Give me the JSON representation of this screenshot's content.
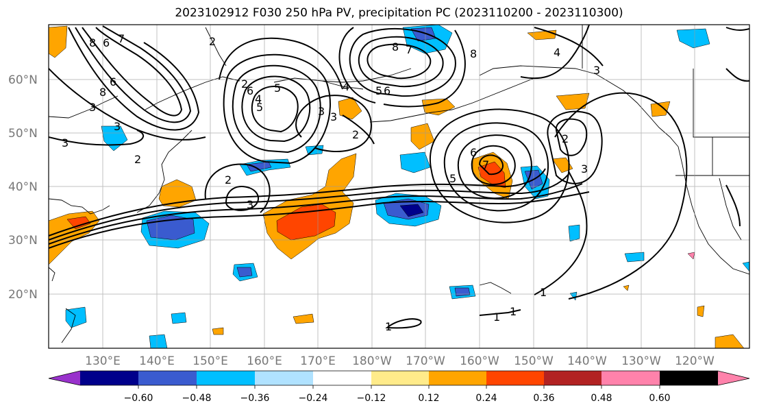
{
  "title": "2023102912 F030 250 hPa PV, precipitation PC (2023110200 - 2023110300)",
  "lat_labels": [
    "60°N",
    "50°N",
    "40°N",
    "30°N",
    "20°N"
  ],
  "lon_labels": [
    "130°E",
    "140°E",
    "150°E",
    "160°E",
    "170°E",
    "180°W",
    "170°W",
    "160°W",
    "150°W",
    "140°W",
    "130°W",
    "120°W"
  ],
  "colorbar": {
    "ticks": [
      "−0.60",
      "−0.48",
      "−0.36",
      "−0.24",
      "−0.12",
      "0.12",
      "0.24",
      "0.36",
      "0.48",
      "0.60"
    ],
    "colors": [
      "#9932cc",
      "#00008b",
      "#3a5bcf",
      "#00bfff",
      "#b0e2ff",
      "#ffffff",
      "#ffeb8a",
      "#ffa500",
      "#ff4500",
      "#b22222",
      "#ff82ab"
    ]
  },
  "contour_labels": [
    "8",
    "6",
    "7",
    "2",
    "8",
    "6",
    "5",
    "4",
    "3",
    "2",
    "3",
    "3",
    "2",
    "6",
    "5",
    "8",
    "7",
    "3",
    "4",
    "3",
    "5",
    "6",
    "8",
    "2",
    "7",
    "6",
    "5",
    "3",
    "2",
    "4",
    "3",
    "3",
    "2",
    "1",
    "1",
    "1",
    "1"
  ],
  "colors": {
    "positive": "#ffa500",
    "strong_positive": "#ff4500",
    "negative": "#00bfff",
    "strong_negative": "#3a5bcf"
  }
}
